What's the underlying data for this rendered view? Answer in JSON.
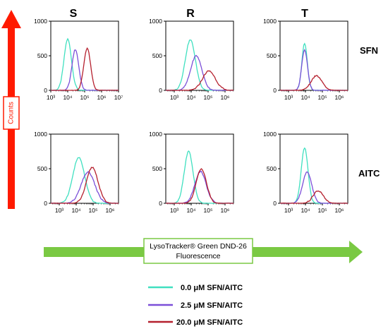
{
  "chart_data": {
    "type": "line",
    "columns": [
      "S",
      "R",
      "T"
    ],
    "rows": [
      "SFN",
      "AITC"
    ],
    "y_axis_title": "Counts",
    "x_axis_title_line1": "LysoTracker® Green DND-26",
    "x_axis_title_line2": "Fluorescence",
    "ylim": [
      0,
      1000
    ],
    "y_ticks": [
      "0",
      "500",
      "1000"
    ],
    "x_scale": "log",
    "series": [
      {
        "name": "0.0 μM SFN/AITC",
        "color": "#40e0c0"
      },
      {
        "name": "2.5 μM SFN/AITC",
        "color": "#7b4fd8"
      },
      {
        "name": "20.0 μM SFN/AITC",
        "color": "#b5202e"
      }
    ],
    "panels": [
      {
        "row": "SFN",
        "col": "S",
        "xlim": [
          3,
          7
        ],
        "x_ticks": [
          "10³",
          "10⁴",
          "10⁵",
          "10⁶",
          "10⁷"
        ],
        "peaks": [
          {
            "center": 4.0,
            "height": 740,
            "width": 0.22
          },
          {
            "center": 4.45,
            "height": 590,
            "width": 0.2
          },
          {
            "center": 5.15,
            "height": 610,
            "width": 0.2
          }
        ]
      },
      {
        "row": "SFN",
        "col": "R",
        "xlim": [
          2.5,
          6.5
        ],
        "x_ticks": [
          "10³",
          "10⁴",
          "10⁵",
          "10⁶"
        ],
        "peaks": [
          {
            "center": 3.95,
            "height": 730,
            "width": 0.3
          },
          {
            "center": 4.3,
            "height": 500,
            "width": 0.33
          },
          {
            "center": 5.05,
            "height": 280,
            "width": 0.38
          }
        ]
      },
      {
        "row": "SFN",
        "col": "T",
        "xlim": [
          2.5,
          6.5
        ],
        "x_ticks": [
          "10³",
          "10⁴",
          "10⁵",
          "10⁶"
        ],
        "peaks": [
          {
            "center": 3.95,
            "height": 680,
            "width": 0.16
          },
          {
            "center": 3.95,
            "height": 590,
            "width": 0.17
          },
          {
            "center": 4.65,
            "height": 210,
            "width": 0.32
          }
        ]
      },
      {
        "row": "AITC",
        "col": "S",
        "xlim": [
          2.5,
          6.5
        ],
        "x_ticks": [
          "10³",
          "10⁴",
          "10⁵",
          "10⁶"
        ],
        "peaks": [
          {
            "center": 4.15,
            "height": 660,
            "width": 0.35
          },
          {
            "center": 4.7,
            "height": 450,
            "width": 0.4
          },
          {
            "center": 4.95,
            "height": 520,
            "width": 0.34
          }
        ]
      },
      {
        "row": "AITC",
        "col": "R",
        "xlim": [
          2.5,
          6.5
        ],
        "x_ticks": [
          "10³",
          "10⁴",
          "10⁵",
          "10⁶"
        ],
        "peaks": [
          {
            "center": 3.85,
            "height": 750,
            "width": 0.26
          },
          {
            "center": 4.55,
            "height": 460,
            "width": 0.33
          },
          {
            "center": 4.6,
            "height": 500,
            "width": 0.3
          }
        ]
      },
      {
        "row": "AITC",
        "col": "T",
        "xlim": [
          2.5,
          6.5
        ],
        "x_ticks": [
          "10³",
          "10⁴",
          "10⁵",
          "10⁶"
        ],
        "peaks": [
          {
            "center": 3.95,
            "height": 800,
            "width": 0.2
          },
          {
            "center": 4.1,
            "height": 450,
            "width": 0.27
          },
          {
            "center": 4.75,
            "height": 180,
            "width": 0.3
          }
        ]
      }
    ]
  }
}
